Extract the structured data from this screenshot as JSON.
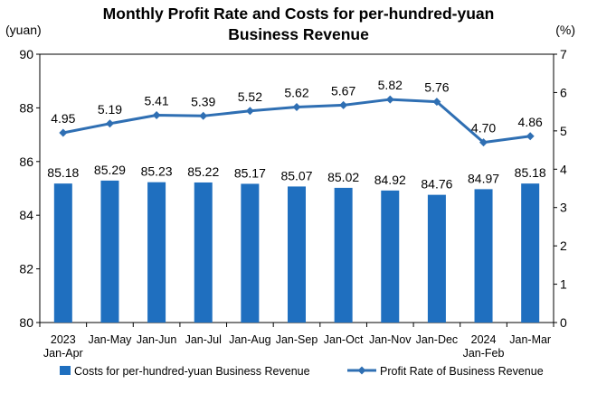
{
  "chart_data": {
    "type": "bar+line",
    "title_lines": [
      "Monthly Profit Rate and Costs for per-hundred-yuan",
      "Business Revenue"
    ],
    "left_axis": {
      "unit": "(yuan)",
      "min": 80,
      "max": 90,
      "ticks": [
        "80",
        "82",
        "84",
        "86",
        "88",
        "90"
      ]
    },
    "right_axis": {
      "unit": "(%)",
      "min": 0,
      "max": 7,
      "ticks": [
        "0",
        "1",
        "2",
        "3",
        "4",
        "5",
        "6",
        "7"
      ]
    },
    "categories": [
      [
        "2023",
        "Jan-Apr"
      ],
      [
        "Jan-May"
      ],
      [
        "Jan-Jun"
      ],
      [
        "Jan-Jul"
      ],
      [
        "Jan-Aug"
      ],
      [
        "Jan-Sep"
      ],
      [
        "Jan-Oct"
      ],
      [
        "Jan-Nov"
      ],
      [
        "Jan-Dec"
      ],
      [
        "2024",
        "Jan-Feb"
      ],
      [
        "Jan-Mar"
      ]
    ],
    "series": [
      {
        "name": "Costs for per-hundred-yuan Business Revenue",
        "type": "bar",
        "axis": "left",
        "color": "#1f6fbf",
        "values": [
          85.18,
          85.29,
          85.23,
          85.22,
          85.17,
          85.07,
          85.02,
          84.92,
          84.76,
          84.97,
          85.18
        ],
        "labels": [
          "85.18",
          "85.29",
          "85.23",
          "85.22",
          "85.17",
          "85.07",
          "85.02",
          "84.92",
          "84.76",
          "84.97",
          "85.18"
        ]
      },
      {
        "name": "Profit Rate of Business Revenue",
        "type": "line",
        "axis": "right",
        "color": "#2f6fb3",
        "values": [
          4.95,
          5.19,
          5.41,
          5.39,
          5.52,
          5.62,
          5.67,
          5.82,
          5.76,
          4.7,
          4.86
        ],
        "labels": [
          "4.95",
          "5.19",
          "5.41",
          "5.39",
          "5.52",
          "5.62",
          "5.67",
          "5.82",
          "5.76",
          "4.70",
          "4.86"
        ]
      }
    ],
    "legend_position": "bottom",
    "grid": false
  }
}
